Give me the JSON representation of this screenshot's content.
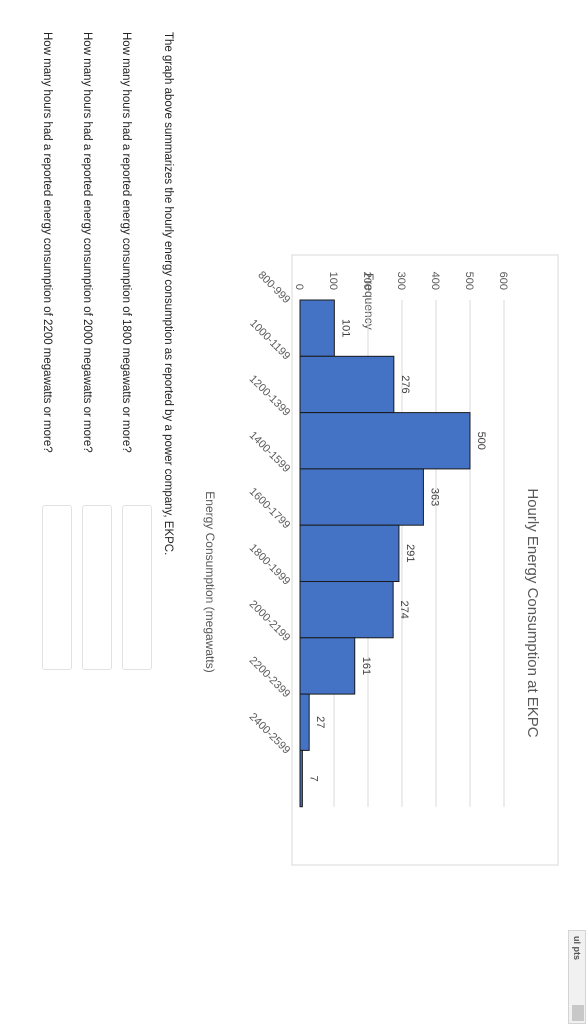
{
  "chart_data": {
    "type": "bar",
    "title": "Hourly Energy Consumption at EKPC",
    "xlabel": "Energy Consumption (megawatts)",
    "ylabel": "Frequency",
    "categories": [
      "800-999",
      "1000-1199",
      "1200-1399",
      "1400-1599",
      "1600-1799",
      "1800-1999",
      "2000-2199",
      "2200-2399",
      "2400-2599"
    ],
    "values": [
      101,
      276,
      500,
      363,
      291,
      274,
      161,
      27,
      7
    ],
    "ylim": [
      0,
      600
    ],
    "yticks": [
      "0",
      "100",
      "200",
      "300",
      "400",
      "500",
      "600"
    ],
    "grid": true,
    "bar_color": "#4472C4",
    "bar_edge_color": "#1a1a1a"
  },
  "intro": "The graph above summarizes the hourly energy consumption as reported by a power company, EKPC.",
  "questions": [
    "How many hours had a reported energy consumption of 1800 megawatts or more?",
    "How many hours had a reported energy consumption of 2000 megawatts or more?",
    "How many hours had a reported energy consumption of 2200 megawatts or more?"
  ],
  "corner_label": "ul pts"
}
